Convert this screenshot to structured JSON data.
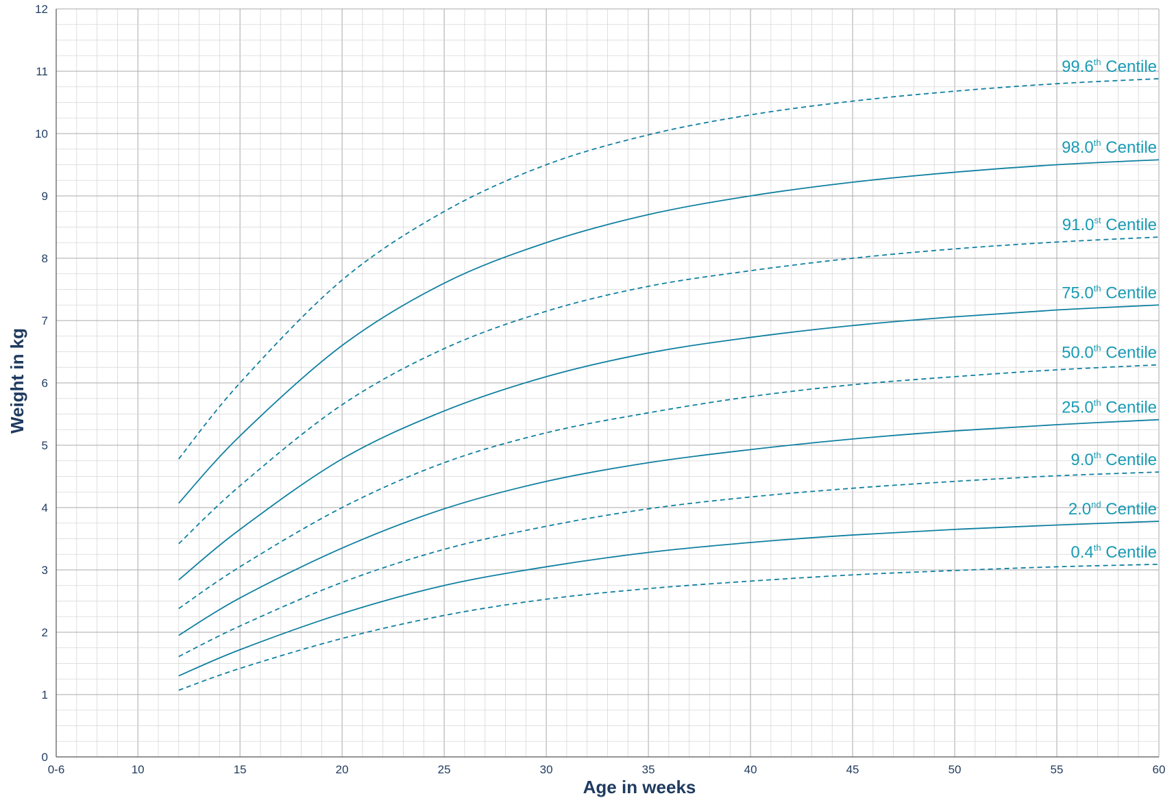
{
  "chart_data": {
    "type": "line",
    "title": "",
    "xlabel": "Age in weeks",
    "ylabel": "Weight in kg",
    "xlim": [
      6,
      60
    ],
    "ylim": [
      0,
      12
    ],
    "grid": true,
    "line_color": "#0e7fa0",
    "label_color": "#1a9bb5",
    "x_ticks": [
      {
        "value": 6,
        "label": "0-6"
      },
      {
        "value": 10,
        "label": "10"
      },
      {
        "value": 15,
        "label": "15"
      },
      {
        "value": 20,
        "label": "20"
      },
      {
        "value": 25,
        "label": "25"
      },
      {
        "value": 30,
        "label": "30"
      },
      {
        "value": 35,
        "label": "35"
      },
      {
        "value": 40,
        "label": "40"
      },
      {
        "value": 45,
        "label": "45"
      },
      {
        "value": 50,
        "label": "50"
      },
      {
        "value": 55,
        "label": "55"
      },
      {
        "value": 60,
        "label": "60"
      }
    ],
    "y_ticks": [
      {
        "value": 0,
        "label": "0"
      },
      {
        "value": 1,
        "label": "1"
      },
      {
        "value": 2,
        "label": "2"
      },
      {
        "value": 3,
        "label": "3"
      },
      {
        "value": 4,
        "label": "4"
      },
      {
        "value": 5,
        "label": "5"
      },
      {
        "value": 6,
        "label": "6"
      },
      {
        "value": 7,
        "label": "7"
      },
      {
        "value": 8,
        "label": "8"
      },
      {
        "value": 9,
        "label": "9"
      },
      {
        "value": 10,
        "label": "10"
      },
      {
        "value": 11,
        "label": "11"
      },
      {
        "value": 12,
        "label": "12"
      }
    ],
    "x": [
      12,
      15,
      20,
      25,
      30,
      35,
      40,
      45,
      50,
      55,
      60
    ],
    "series": [
      {
        "name": "99.6th Centile",
        "value_text": "99.6",
        "suffix": "th",
        "word": "Centile",
        "dashed": true,
        "values": [
          4.78,
          6.0,
          7.65,
          8.75,
          9.5,
          9.98,
          10.3,
          10.52,
          10.68,
          10.8,
          10.88
        ]
      },
      {
        "name": "98.0th Centile",
        "value_text": "98.0",
        "suffix": "th",
        "word": "Centile",
        "dashed": false,
        "values": [
          4.07,
          5.15,
          6.6,
          7.6,
          8.25,
          8.7,
          9.0,
          9.22,
          9.38,
          9.5,
          9.58
        ]
      },
      {
        "name": "91.0st Centile",
        "value_text": "91.0",
        "suffix": "st",
        "word": "Centile",
        "dashed": true,
        "values": [
          3.42,
          4.35,
          5.65,
          6.55,
          7.15,
          7.55,
          7.8,
          8.0,
          8.15,
          8.26,
          8.34
        ]
      },
      {
        "name": "75.0th Centile",
        "value_text": "75.0",
        "suffix": "th",
        "word": "Centile",
        "dashed": false,
        "values": [
          2.84,
          3.65,
          4.78,
          5.55,
          6.1,
          6.48,
          6.73,
          6.92,
          7.06,
          7.17,
          7.25
        ]
      },
      {
        "name": "50.0th Centile",
        "value_text": "50.0",
        "suffix": "th",
        "word": "Centile",
        "dashed": true,
        "values": [
          2.38,
          3.05,
          4.0,
          4.72,
          5.2,
          5.52,
          5.78,
          5.97,
          6.1,
          6.21,
          6.29
        ]
      },
      {
        "name": "25.0th Centile",
        "value_text": "25.0",
        "suffix": "th",
        "word": "Centile",
        "dashed": false,
        "values": [
          1.95,
          2.55,
          3.35,
          3.98,
          4.42,
          4.72,
          4.93,
          5.1,
          5.23,
          5.33,
          5.41
        ]
      },
      {
        "name": "9.0th Centile",
        "value_text": "9.0",
        "suffix": "th",
        "word": "Centile",
        "dashed": true,
        "values": [
          1.61,
          2.1,
          2.8,
          3.33,
          3.7,
          3.98,
          4.17,
          4.31,
          4.42,
          4.51,
          4.57
        ]
      },
      {
        "name": "2.0nd Centile",
        "value_text": "2.0",
        "suffix": "nd",
        "word": "Centile",
        "dashed": false,
        "values": [
          1.3,
          1.72,
          2.3,
          2.75,
          3.05,
          3.28,
          3.44,
          3.56,
          3.65,
          3.72,
          3.78
        ]
      },
      {
        "name": "0.4th Centile",
        "value_text": "0.4",
        "suffix": "th",
        "word": "Centile",
        "dashed": true,
        "values": [
          1.07,
          1.42,
          1.9,
          2.27,
          2.53,
          2.7,
          2.82,
          2.92,
          2.99,
          3.05,
          3.09
        ]
      }
    ]
  }
}
